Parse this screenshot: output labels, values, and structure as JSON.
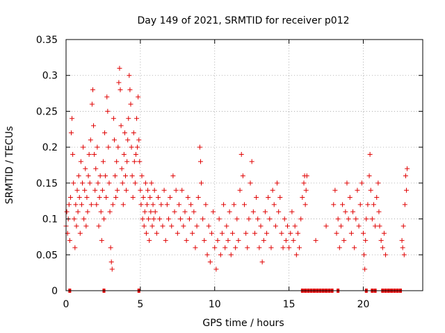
{
  "chart_data": {
    "type": "scatter",
    "title": "Day 149 of 2021, SRMTID for receiver p012",
    "xlabel": "GPS time / hours",
    "ylabel": "SRMTID / TECUs",
    "xlim": [
      0,
      24
    ],
    "ylim": [
      0,
      0.35
    ],
    "x_ticks": [
      0,
      5,
      10,
      15,
      20
    ],
    "x_tick_labels": [
      "0",
      "5",
      "10",
      "15",
      "20"
    ],
    "y_ticks": [
      0,
      0.05,
      0.1,
      0.15,
      0.2,
      0.25,
      0.3,
      0.35
    ],
    "y_tick_labels": [
      "0",
      "0.05",
      "0.1",
      "0.15",
      "0.2",
      "0.25",
      "0.3",
      "0.35"
    ],
    "grid": true,
    "marker": "plus",
    "color": "#e00000",
    "series": [
      {
        "name": "SRMTID",
        "points": [
          [
            0.0,
            0.09
          ],
          [
            0.05,
            0.11
          ],
          [
            0.1,
            0.08
          ],
          [
            0.15,
            0.1
          ],
          [
            0.2,
            0.12
          ],
          [
            0.25,
            0.07
          ],
          [
            0.3,
            0.13
          ],
          [
            0.35,
            0.22
          ],
          [
            0.4,
            0.24
          ],
          [
            0.45,
            0.19
          ],
          [
            0.5,
            0.15
          ],
          [
            0.55,
            0.1
          ],
          [
            0.6,
            0.06
          ],
          [
            0.65,
            0.12
          ],
          [
            0.7,
            0.09
          ],
          [
            0.75,
            0.14
          ],
          [
            0.8,
            0.11
          ],
          [
            0.85,
            0.16
          ],
          [
            0.9,
            0.13
          ],
          [
            0.95,
            0.08
          ],
          [
            1.0,
            0.18
          ],
          [
            1.05,
            0.12
          ],
          [
            1.1,
            0.15
          ],
          [
            1.15,
            0.2
          ],
          [
            1.2,
            0.1
          ],
          [
            1.25,
            0.14
          ],
          [
            1.3,
            0.17
          ],
          [
            1.35,
            0.09
          ],
          [
            1.4,
            0.13
          ],
          [
            1.45,
            0.11
          ],
          [
            1.5,
            0.16
          ],
          [
            1.55,
            0.19
          ],
          [
            1.6,
            0.15
          ],
          [
            1.65,
            0.21
          ],
          [
            1.7,
            0.12
          ],
          [
            1.75,
            0.26
          ],
          [
            1.8,
            0.28
          ],
          [
            1.85,
            0.23
          ],
          [
            1.9,
            0.19
          ],
          [
            1.95,
            0.14
          ],
          [
            2.0,
            0.17
          ],
          [
            2.05,
            0.12
          ],
          [
            2.1,
            0.2
          ],
          [
            2.15,
            0.15
          ],
          [
            2.2,
            0.09
          ],
          [
            2.25,
            0.13
          ],
          [
            2.3,
            0.16
          ],
          [
            2.35,
            0.11
          ],
          [
            2.4,
            0.07
          ],
          [
            2.45,
            0.14
          ],
          [
            2.5,
            0.18
          ],
          [
            2.55,
            0.1
          ],
          [
            2.6,
            0.22
          ],
          [
            2.65,
            0.16
          ],
          [
            2.7,
            0.13
          ],
          [
            2.75,
            0.27
          ],
          [
            2.8,
            0.25
          ],
          [
            2.85,
            0.2
          ],
          [
            2.9,
            0.15
          ],
          [
            2.95,
            0.11
          ],
          [
            3.0,
            0.06
          ],
          [
            3.05,
            0.04
          ],
          [
            3.1,
            0.03
          ],
          [
            3.15,
            0.12
          ],
          [
            3.2,
            0.24
          ],
          [
            3.25,
            0.21
          ],
          [
            3.3,
            0.16
          ],
          [
            3.35,
            0.13
          ],
          [
            3.4,
            0.18
          ],
          [
            3.45,
            0.14
          ],
          [
            3.5,
            0.2
          ],
          [
            3.55,
            0.29
          ],
          [
            3.6,
            0.31
          ],
          [
            3.65,
            0.28
          ],
          [
            3.7,
            0.23
          ],
          [
            3.75,
            0.17
          ],
          [
            3.8,
            0.15
          ],
          [
            3.85,
            0.12
          ],
          [
            3.9,
            0.19
          ],
          [
            3.95,
            0.22
          ],
          [
            4.0,
            0.16
          ],
          [
            4.05,
            0.14
          ],
          [
            4.1,
            0.18
          ],
          [
            4.15,
            0.21
          ],
          [
            4.2,
            0.24
          ],
          [
            4.25,
            0.3
          ],
          [
            4.3,
            0.28
          ],
          [
            4.35,
            0.26
          ],
          [
            4.4,
            0.2
          ],
          [
            4.45,
            0.16
          ],
          [
            4.5,
            0.13
          ],
          [
            4.55,
            0.22
          ],
          [
            4.6,
            0.18
          ],
          [
            4.65,
            0.15
          ],
          [
            4.7,
            0.19
          ],
          [
            4.75,
            0.24
          ],
          [
            4.8,
            0.2
          ],
          [
            4.85,
            0.27
          ],
          [
            4.9,
            0.21
          ],
          [
            4.95,
            0.18
          ],
          [
            5.0,
            0.14
          ],
          [
            5.05,
            0.12
          ],
          [
            5.1,
            0.16
          ],
          [
            5.15,
            0.1
          ],
          [
            5.2,
            0.13
          ],
          [
            5.25,
            0.09
          ],
          [
            5.3,
            0.11
          ],
          [
            5.35,
            0.15
          ],
          [
            5.4,
            0.08
          ],
          [
            5.45,
            0.12
          ],
          [
            5.5,
            0.14
          ],
          [
            5.55,
            0.1
          ],
          [
            5.6,
            0.07
          ],
          [
            5.65,
            0.13
          ],
          [
            5.7,
            0.11
          ],
          [
            5.75,
            0.15
          ],
          [
            5.8,
            0.09
          ],
          [
            5.85,
            0.12
          ],
          [
            5.9,
            0.1
          ],
          [
            5.95,
            0.14
          ],
          [
            6.0,
            0.11
          ],
          [
            6.1,
            0.08
          ],
          [
            6.2,
            0.13
          ],
          [
            6.3,
            0.1
          ],
          [
            6.4,
            0.12
          ],
          [
            6.5,
            0.09
          ],
          [
            6.6,
            0.14
          ],
          [
            6.7,
            0.07
          ],
          [
            6.8,
            0.12
          ],
          [
            6.9,
            0.1
          ],
          [
            7.0,
            0.13
          ],
          [
            7.1,
            0.09
          ],
          [
            7.2,
            0.16
          ],
          [
            7.3,
            0.11
          ],
          [
            7.4,
            0.14
          ],
          [
            7.5,
            0.08
          ],
          [
            7.6,
            0.12
          ],
          [
            7.7,
            0.1
          ],
          [
            7.8,
            0.14
          ],
          [
            7.9,
            0.09
          ],
          [
            8.0,
            0.11
          ],
          [
            8.1,
            0.07
          ],
          [
            8.2,
            0.13
          ],
          [
            8.3,
            0.1
          ],
          [
            8.4,
            0.12
          ],
          [
            8.5,
            0.08
          ],
          [
            8.6,
            0.11
          ],
          [
            8.7,
            0.06
          ],
          [
            8.8,
            0.09
          ],
          [
            8.9,
            0.13
          ],
          [
            9.0,
            0.2
          ],
          [
            9.05,
            0.18
          ],
          [
            9.1,
            0.15
          ],
          [
            9.2,
            0.1
          ],
          [
            9.3,
            0.07
          ],
          [
            9.4,
            0.12
          ],
          [
            9.5,
            0.05
          ],
          [
            9.6,
            0.09
          ],
          [
            9.7,
            0.04
          ],
          [
            9.8,
            0.08
          ],
          [
            9.9,
            0.11
          ],
          [
            10.0,
            0.06
          ],
          [
            10.1,
            0.03
          ],
          [
            10.2,
            0.07
          ],
          [
            10.3,
            0.1
          ],
          [
            10.4,
            0.05
          ],
          [
            10.5,
            0.08
          ],
          [
            10.6,
            0.12
          ],
          [
            10.7,
            0.06
          ],
          [
            10.8,
            0.09
          ],
          [
            10.9,
            0.07
          ],
          [
            11.0,
            0.11
          ],
          [
            11.1,
            0.05
          ],
          [
            11.2,
            0.08
          ],
          [
            11.3,
            0.12
          ],
          [
            11.4,
            0.06
          ],
          [
            11.5,
            0.1
          ],
          [
            11.6,
            0.07
          ],
          [
            11.7,
            0.14
          ],
          [
            11.8,
            0.19
          ],
          [
            11.9,
            0.16
          ],
          [
            12.0,
            0.12
          ],
          [
            12.1,
            0.08
          ],
          [
            12.2,
            0.06
          ],
          [
            12.3,
            0.1
          ],
          [
            12.4,
            0.15
          ],
          [
            12.5,
            0.18
          ],
          [
            12.6,
            0.11
          ],
          [
            12.7,
            0.08
          ],
          [
            12.8,
            0.13
          ],
          [
            12.9,
            0.1
          ],
          [
            13.0,
            0.06
          ],
          [
            13.1,
            0.09
          ],
          [
            13.2,
            0.04
          ],
          [
            13.3,
            0.07
          ],
          [
            13.4,
            0.11
          ],
          [
            13.5,
            0.08
          ],
          [
            13.6,
            0.13
          ],
          [
            13.7,
            0.1
          ],
          [
            13.8,
            0.06
          ],
          [
            13.9,
            0.14
          ],
          [
            14.0,
            0.12
          ],
          [
            14.1,
            0.09
          ],
          [
            14.2,
            0.15
          ],
          [
            14.3,
            0.11
          ],
          [
            14.4,
            0.13
          ],
          [
            14.5,
            0.08
          ],
          [
            14.6,
            0.06
          ],
          [
            14.7,
            0.1
          ],
          [
            14.8,
            0.07
          ],
          [
            14.9,
            0.09
          ],
          [
            15.0,
            0.06
          ],
          [
            15.1,
            0.08
          ],
          [
            15.2,
            0.11
          ],
          [
            15.3,
            0.07
          ],
          [
            15.4,
            0.09
          ],
          [
            15.5,
            0.05
          ],
          [
            15.6,
            0.08
          ],
          [
            15.7,
            0.06
          ],
          [
            15.8,
            0.1
          ],
          [
            15.9,
            0.13
          ],
          [
            16.0,
            0.15
          ],
          [
            16.05,
            0.16
          ],
          [
            16.1,
            0.12
          ],
          [
            16.15,
            0.14
          ],
          [
            16.2,
            0.16
          ],
          [
            16.8,
            0.07
          ],
          [
            17.5,
            0.09
          ],
          [
            18.0,
            0.12
          ],
          [
            18.1,
            0.14
          ],
          [
            18.2,
            0.08
          ],
          [
            18.3,
            0.1
          ],
          [
            18.4,
            0.06
          ],
          [
            18.5,
            0.09
          ],
          [
            18.6,
            0.12
          ],
          [
            18.7,
            0.07
          ],
          [
            18.8,
            0.11
          ],
          [
            18.9,
            0.15
          ],
          [
            19.0,
            0.1
          ],
          [
            19.1,
            0.13
          ],
          [
            19.2,
            0.08
          ],
          [
            19.3,
            0.11
          ],
          [
            19.4,
            0.06
          ],
          [
            19.5,
            0.1
          ],
          [
            19.6,
            0.14
          ],
          [
            19.7,
            0.09
          ],
          [
            19.8,
            0.12
          ],
          [
            19.9,
            0.15
          ],
          [
            20.0,
            0.08
          ],
          [
            20.05,
            0.05
          ],
          [
            20.1,
            0.03
          ],
          [
            20.15,
            0.07
          ],
          [
            20.2,
            0.1
          ],
          [
            20.3,
            0.12
          ],
          [
            20.4,
            0.16
          ],
          [
            20.45,
            0.19
          ],
          [
            20.5,
            0.14
          ],
          [
            20.6,
            0.1
          ],
          [
            20.7,
            0.12
          ],
          [
            20.8,
            0.09
          ],
          [
            20.9,
            0.13
          ],
          [
            21.0,
            0.15
          ],
          [
            21.05,
            0.11
          ],
          [
            21.1,
            0.09
          ],
          [
            21.2,
            0.07
          ],
          [
            21.3,
            0.06
          ],
          [
            21.4,
            0.08
          ],
          [
            21.5,
            0.05
          ],
          [
            22.6,
            0.07
          ],
          [
            22.65,
            0.06
          ],
          [
            22.7,
            0.09
          ],
          [
            22.75,
            0.05
          ],
          [
            22.8,
            0.12
          ],
          [
            22.85,
            0.16
          ],
          [
            22.9,
            0.14
          ],
          [
            22.95,
            0.17
          ]
        ]
      }
    ],
    "missing_data_markers": [
      0.25,
      2.55,
      4.9,
      15.9,
      16.1,
      16.3,
      16.5,
      16.7,
      16.9,
      17.1,
      17.3,
      17.5,
      17.7,
      17.9,
      18.3,
      20.2,
      20.6,
      20.8,
      21.3,
      21.5,
      21.7,
      21.9,
      22.1,
      22.3,
      22.5
    ]
  }
}
